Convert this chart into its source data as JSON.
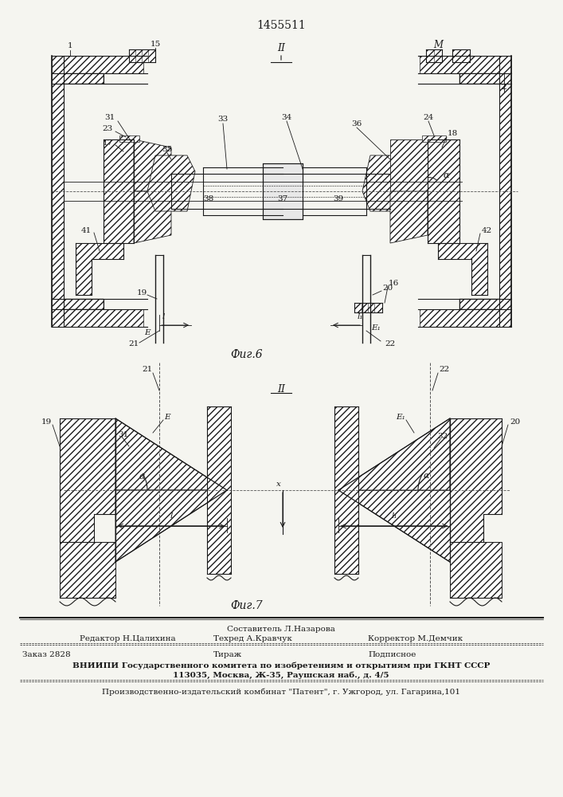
{
  "patent_number": "1455511",
  "fig6_label": "Фиг.6",
  "fig7_label": "Фиг.7",
  "bg_color": "#f5f5f0",
  "line_color": "#1a1a1a",
  "footer": {
    "composer": "Составитель Л.Назарова",
    "editor": "Редактор Н.Цалихина",
    "techred": "Техред А.Кравчук",
    "corrector": "Корректор М.Демчик",
    "order": "Заказ 2828",
    "tirazh": "Тираж",
    "podpisnoe": "Подписное",
    "vniiipi": "ВНИИПИ Государственного комитета по изобретениям и открытиям при ГКНТ СССР",
    "address1": "113035, Москва, Ж-35, Раушская наб., д. 4/5",
    "publisher": "Производственно-издательский комбинат \"Патент\", г. Ужгород, ул. Гагарина,101"
  }
}
